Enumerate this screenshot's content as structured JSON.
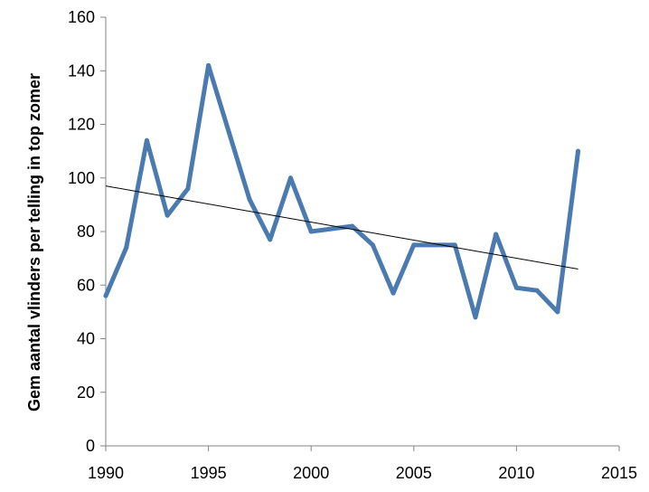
{
  "chart_data": {
    "type": "line",
    "title": "",
    "xlabel": "",
    "ylabel": "Gem aantal vlinders per telling in top zomer",
    "xlim": [
      1990,
      2015
    ],
    "ylim": [
      0,
      160
    ],
    "x_ticks": [
      "1990",
      "1995",
      "2000",
      "2005",
      "2010",
      "2015"
    ],
    "y_ticks": [
      "0",
      "20",
      "40",
      "60",
      "80",
      "100",
      "120",
      "140",
      "160"
    ],
    "grid": false,
    "legend": "none",
    "series": [
      {
        "color": "#4a7ab0",
        "x": [
          1990,
          1991,
          1992,
          1993,
          1994,
          1995,
          1996,
          1997,
          1998,
          1999,
          2000,
          2001,
          2002,
          2003,
          2004,
          2005,
          2006,
          2007,
          2008,
          2009,
          2010,
          2011,
          2012,
          2013
        ],
        "y": [
          56,
          74,
          114,
          86,
          96,
          142,
          117,
          92,
          77,
          100,
          80,
          81,
          82,
          75,
          57,
          75,
          75,
          75,
          48,
          79,
          59,
          58,
          50,
          110
        ]
      }
    ],
    "trendline": {
      "color": "#000000",
      "x": [
        1990,
        2013
      ],
      "y": [
        97,
        66
      ]
    }
  }
}
